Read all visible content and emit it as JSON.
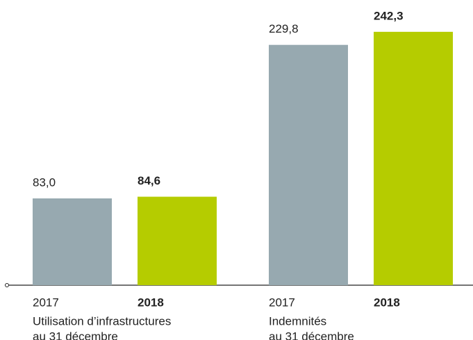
{
  "chart_data": {
    "type": "bar",
    "categories": [
      [
        "Utilisation d’infrastructures",
        "au 31 décembre"
      ],
      [
        "Indemnités",
        "au 31 décembre"
      ]
    ],
    "series": [
      {
        "name": "2017",
        "color": "#97a9b0",
        "values": [
          83.0,
          229.8
        ],
        "value_labels": [
          "83,0",
          "229,8"
        ]
      },
      {
        "name": "2018",
        "color": "#b5cc00",
        "values": [
          84.6,
          242.3
        ],
        "value_labels": [
          "84,6",
          "242,3"
        ]
      }
    ]
  }
}
